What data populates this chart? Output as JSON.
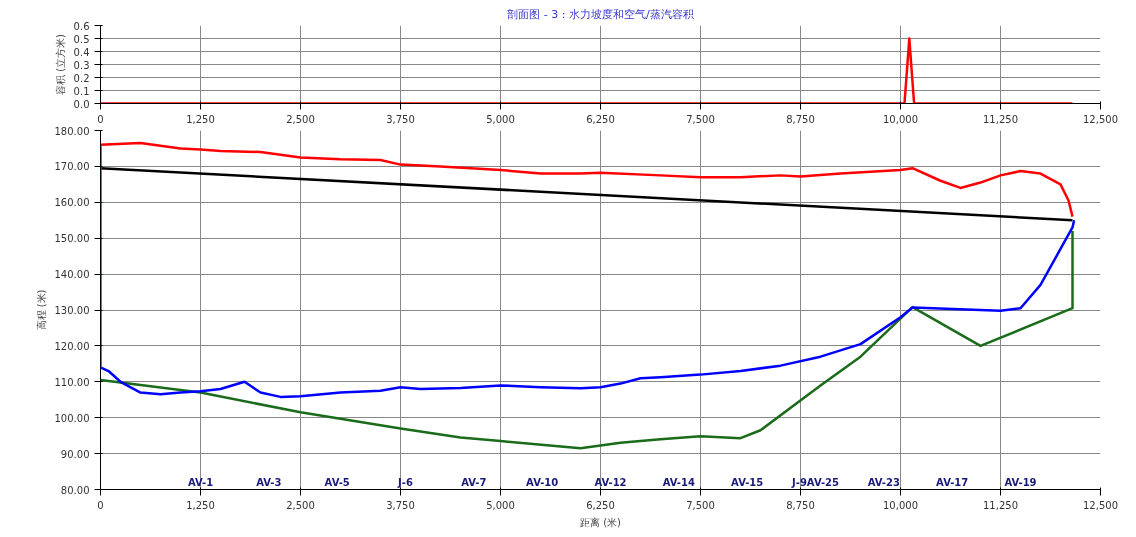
{
  "chart_data": [
    {
      "type": "line",
      "title": "剖面图 - 3 : 水力坡度和空气/蒸汽容积",
      "ylabel": "容积 (立方米)",
      "xlim": [
        0,
        12500
      ],
      "ylim": [
        0,
        0.6
      ],
      "grid": true,
      "xticks": [
        0,
        {
          "value": 1250,
          "label": "1,250"
        },
        {
          "value": 2500,
          "label": "2,500"
        },
        {
          "value": 3750,
          "label": "3,750"
        },
        {
          "value": 5000,
          "label": "5,000"
        },
        {
          "value": 6250,
          "label": "6,250"
        },
        {
          "value": 7500,
          "label": "7,500"
        },
        {
          "value": 8750,
          "label": "8,750"
        },
        {
          "value": 10000,
          "label": "10,000"
        },
        {
          "value": 11250,
          "label": "11,250"
        },
        {
          "value": 12500,
          "label": "12,500"
        }
      ],
      "yticks": [
        {
          "value": 0,
          "label": "0.0"
        },
        0.1,
        0.2,
        0.3,
        0.4,
        0.5,
        0.6
      ],
      "series": [
        {
          "color": "#ff0000",
          "x": [
            0,
            10050,
            10110,
            10170,
            12150
          ],
          "values": [
            0,
            0,
            0.5,
            0,
            0
          ]
        }
      ]
    },
    {
      "type": "line",
      "xlabel": "距离 (米)",
      "ylabel": "高程 (米)",
      "xlim": [
        0,
        12500
      ],
      "ylim": [
        80,
        180
      ],
      "grid": true,
      "xticks": [
        0,
        {
          "value": 1250,
          "label": "1,250"
        },
        {
          "value": 2500,
          "label": "2,500"
        },
        {
          "value": 3750,
          "label": "3,750"
        },
        {
          "value": 5000,
          "label": "5,000"
        },
        {
          "value": 6250,
          "label": "6,250"
        },
        {
          "value": 7500,
          "label": "7,500"
        },
        {
          "value": 8750,
          "label": "8,750"
        },
        {
          "value": 10000,
          "label": "10,000"
        },
        {
          "value": 11250,
          "label": "11,250"
        },
        {
          "value": 12500,
          "label": "12,500"
        }
      ],
      "yticks": [
        {
          "value": 80,
          "label": "80.00"
        },
        {
          "value": 90,
          "label": "90.00"
        },
        {
          "value": 100,
          "label": "100.00"
        },
        {
          "value": 110,
          "label": "110.00"
        },
        {
          "value": 120,
          "label": "120.00"
        },
        {
          "value": 130,
          "label": "130.00"
        },
        {
          "value": 140,
          "label": "140.00"
        },
        {
          "value": 150,
          "label": "150.00"
        },
        {
          "value": 160,
          "label": "160.00"
        },
        {
          "value": 170,
          "label": "170.00"
        },
        {
          "value": 180,
          "label": "180.00"
        }
      ],
      "series": [
        {
          "color": "#000000",
          "x": [
            0,
            12150
          ],
          "values": [
            169.5,
            155
          ]
        },
        {
          "color": "#1a6b1a",
          "x": [
            0,
            1250,
            2500,
            3750,
            4500,
            5000,
            6000,
            6500,
            7000,
            7500,
            8000,
            8250,
            9000,
            9500,
            10150,
            11000,
            12150,
            12150
          ],
          "values": [
            110.5,
            107,
            101.5,
            97,
            94.5,
            93.5,
            91.5,
            93,
            94,
            94.8,
            94.3,
            96.5,
            109,
            117,
            130.8,
            120,
            130.5,
            152
          ]
        },
        {
          "color": "#0000ff",
          "x": [
            0,
            100,
            250,
            500,
            750,
            1000,
            1250,
            1500,
            1800,
            2000,
            2250,
            2500,
            3000,
            3500,
            3750,
            4000,
            4500,
            5000,
            5500,
            6000,
            6250,
            6500,
            6750,
            7000,
            7500,
            8000,
            8500,
            9000,
            9500,
            10000,
            10150,
            11250,
            11500,
            11750,
            12000,
            12150,
            12170
          ],
          "values": [
            114,
            113,
            110,
            107,
            106.5,
            107,
            107.4,
            108,
            110,
            107,
            105.8,
            106,
            107,
            107.5,
            108.5,
            108,
            108.3,
            109,
            108.5,
            108.2,
            108.5,
            109.5,
            111,
            111.3,
            112,
            113,
            114.5,
            117,
            120.5,
            128,
            130.7,
            129.8,
            130.5,
            137,
            147,
            153,
            155
          ]
        },
        {
          "color": "#ff0000",
          "x": [
            0,
            0,
            500,
            1000,
            1250,
            1500,
            2000,
            2500,
            3000,
            3500,
            3750,
            4250,
            5000,
            5500,
            6000,
            6250,
            7000,
            7500,
            8000,
            8500,
            8750,
            9250,
            10000,
            10150,
            10500,
            10750,
            11000,
            11250,
            11500,
            11750,
            12000,
            12100,
            12150
          ],
          "values": [
            114,
            176,
            176.5,
            175,
            174.7,
            174.3,
            174,
            172.5,
            172,
            171.8,
            170.5,
            170,
            169,
            168,
            168,
            168.2,
            167.5,
            167,
            167,
            167.5,
            167.2,
            168,
            169,
            169.5,
            166,
            164,
            165.5,
            167.5,
            168.7,
            168,
            165,
            160.5,
            156
          ]
        }
      ],
      "annotations": [
        "AV-1",
        "AV-3",
        "AV-5",
        "J-6",
        "AV-7",
        "AV-10",
        "AV-12",
        "AV-14",
        "AV-15",
        "J-9AV-25",
        "AV-23",
        "AV-17",
        "AV-19"
      ]
    }
  ]
}
